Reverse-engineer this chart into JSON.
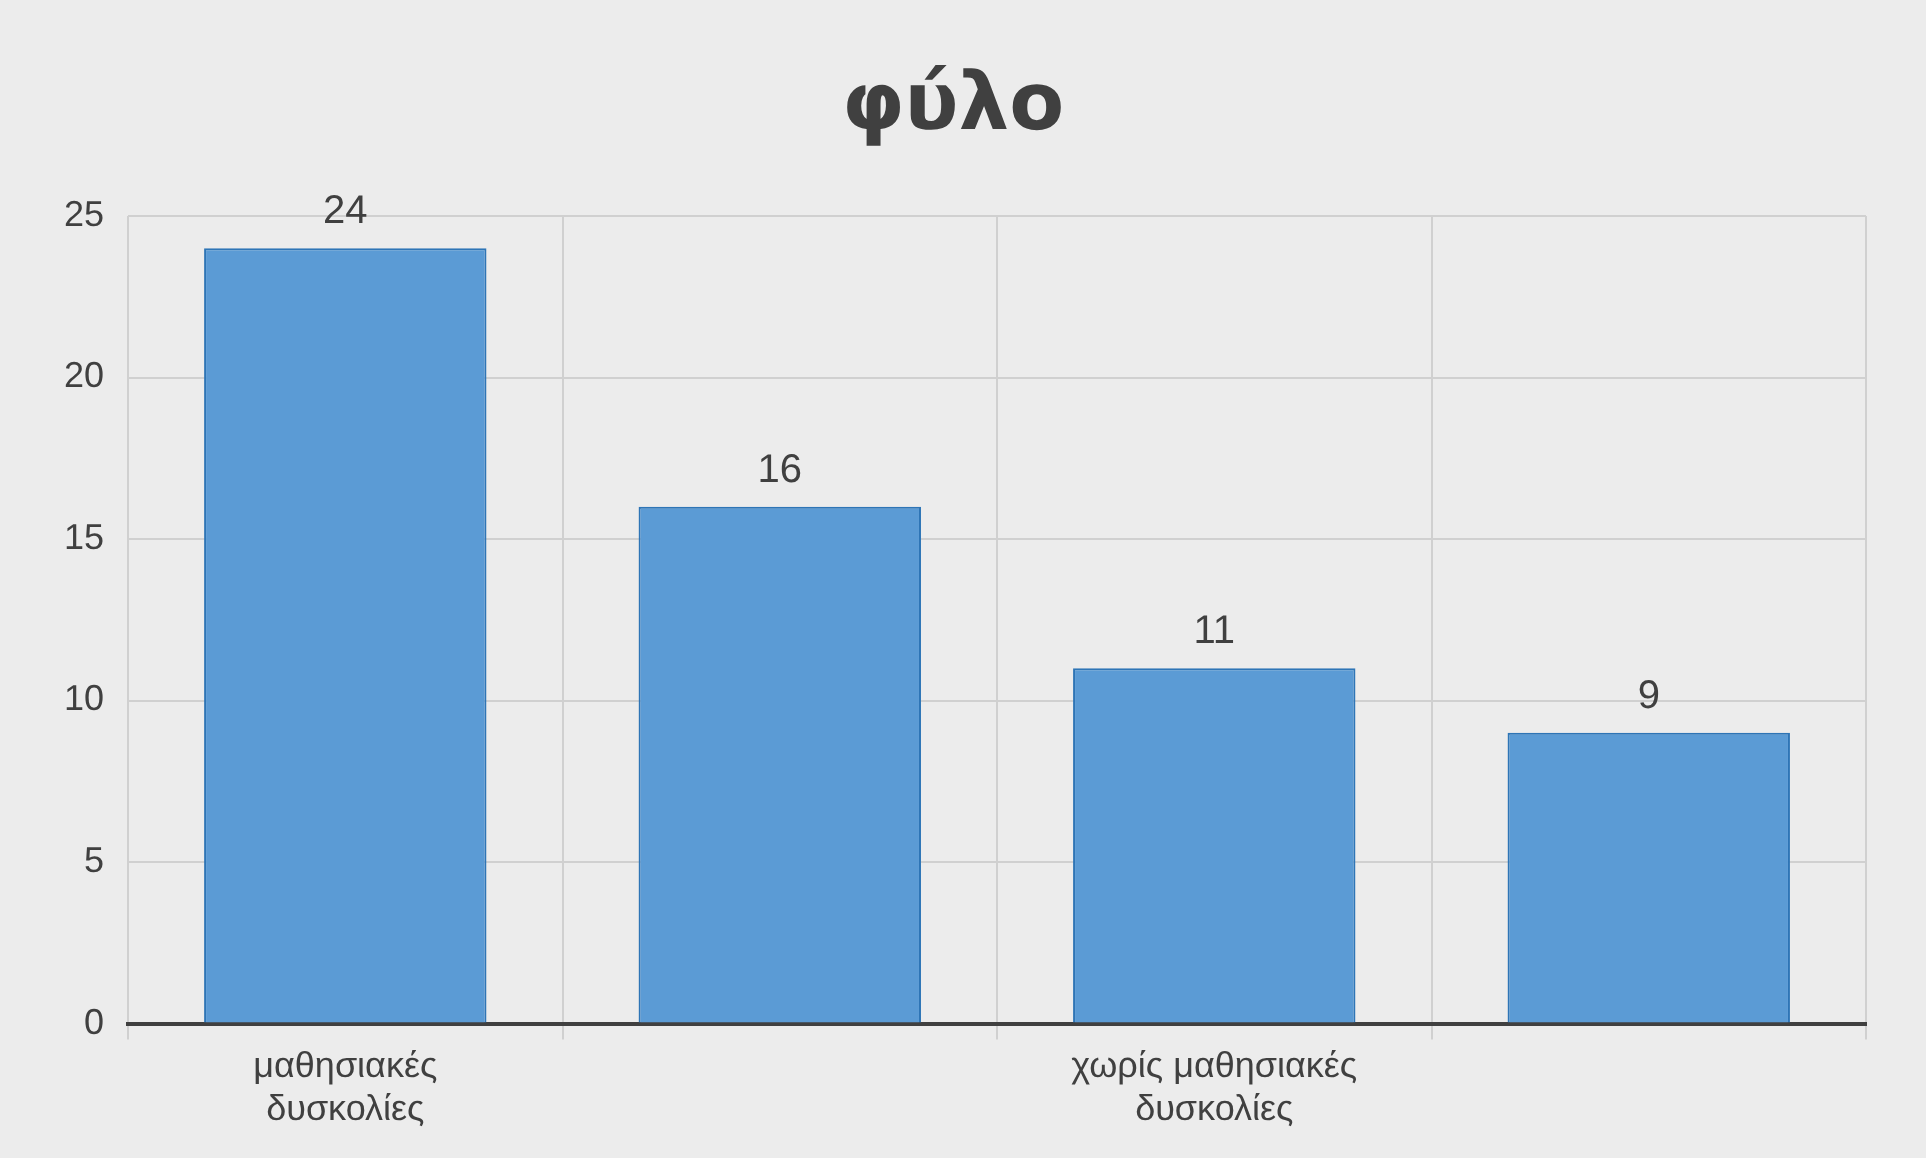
{
  "chart_data": {
    "type": "bar",
    "title": "φύλο",
    "categories": [
      "μαθησιακές δυσκολίες",
      null,
      "χωρίς μαθησιακές δυσκολίες",
      null
    ],
    "values": [
      24,
      16,
      11,
      9
    ],
    "color": "#5b9bd5",
    "ylim": [
      0,
      25
    ],
    "yticks": [
      0,
      5,
      10,
      15,
      20,
      25
    ],
    "grid": true,
    "data_labels": true
  }
}
